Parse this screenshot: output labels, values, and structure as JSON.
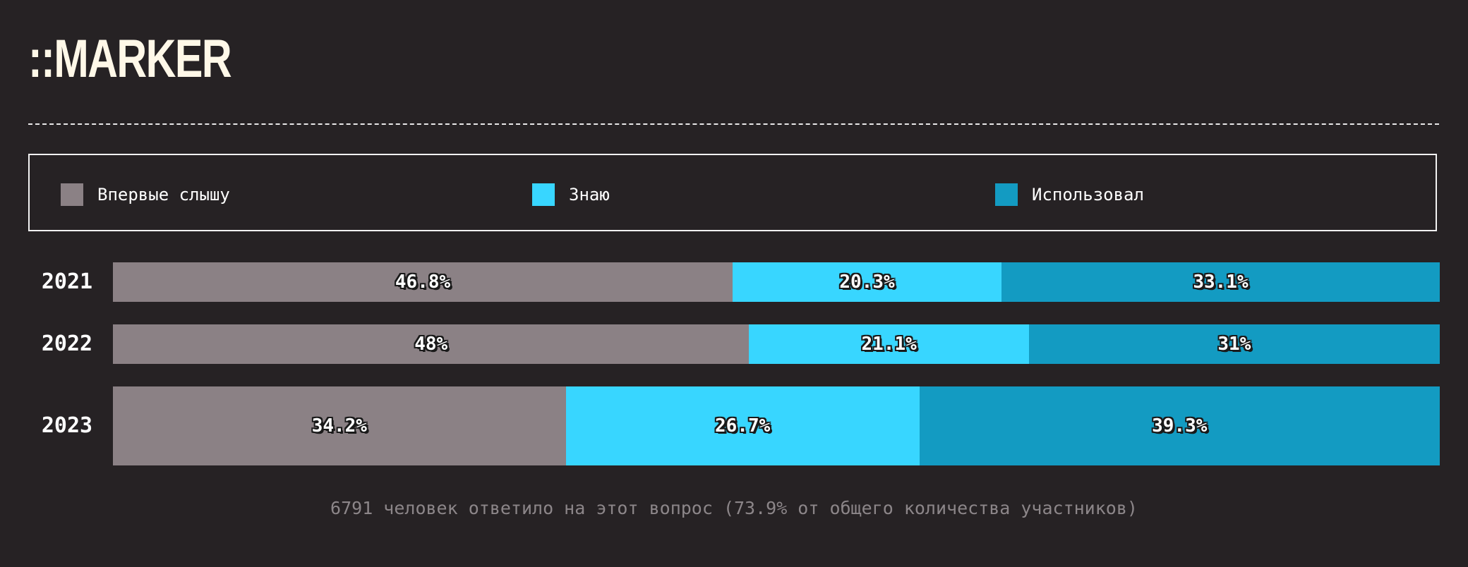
{
  "logo": "::MARKER",
  "legend": [
    {
      "label": "Впервые слышу",
      "color": "#8b8185"
    },
    {
      "label": "Знаю",
      "color": "#38d6ff"
    },
    {
      "label": "Использовал",
      "color": "#139bc2"
    }
  ],
  "chart_data": {
    "type": "bar",
    "orientation": "horizontal",
    "stacked": true,
    "categories": [
      "2021",
      "2022",
      "2023"
    ],
    "series": [
      {
        "name": "Впервые слышу",
        "color": "#8b8185",
        "values": [
          46.8,
          48,
          34.2
        ],
        "labels": [
          "46.8%",
          "48%",
          "34.2%"
        ]
      },
      {
        "name": "Знаю",
        "color": "#38d6ff",
        "values": [
          20.3,
          21.1,
          26.7
        ],
        "labels": [
          "20.3%",
          "21.1%",
          "26.7%"
        ]
      },
      {
        "name": "Использовал",
        "color": "#139bc2",
        "values": [
          33.1,
          31,
          39.3
        ],
        "labels": [
          "33.1%",
          "31%",
          "39.3%"
        ]
      }
    ],
    "legend_position": "top",
    "grid": false
  },
  "footnote": "6791 человек ответило на этот вопрос (73.9% от общего количества участников)"
}
